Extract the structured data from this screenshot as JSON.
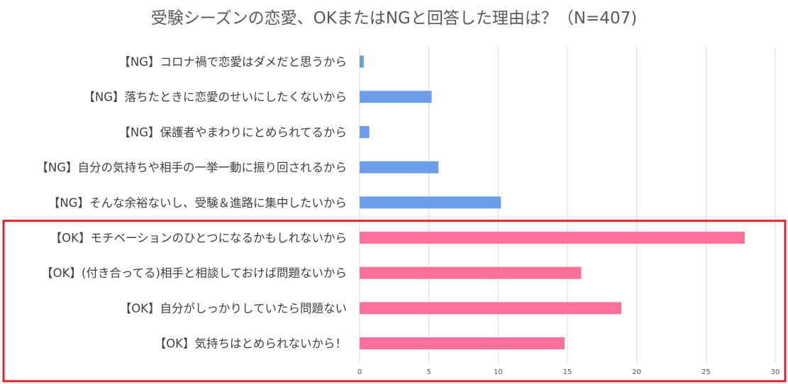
{
  "chart_data": {
    "type": "bar",
    "orientation": "horizontal",
    "title": "受験シーズンの恋愛、OKまたはNGと回答した理由は？（N=407)",
    "categories": [
      "【NG】コロナ禍で恋愛はダメだと思うから",
      "【NG】落ちたときに恋愛のせいにしたくないから",
      "【NG】保護者やまわりにとめられてるから",
      "【NG】自分の気持ちや相手の一挙一動に振り回されるから",
      "【NG】そんな余裕ないし、受験＆進路に集中したいから",
      "【OK】モチベーションのひとつになるかもしれないから",
      "【OK】(付き合ってる)相手と相談しておけば問題ないから",
      "【OK】自分がしっかりしていたら問題ない",
      "【OK】気持ちはとめられないから！"
    ],
    "values": [
      0.3,
      5.2,
      0.7,
      5.7,
      10.2,
      27.8,
      16.0,
      18.9,
      14.8
    ],
    "group": [
      "NG",
      "NG",
      "NG",
      "NG",
      "NG",
      "OK",
      "OK",
      "OK",
      "OK"
    ],
    "colors": {
      "NG": "#6d9eeb",
      "NG_first": "#6fa0c8",
      "OK": "#ff6f9c",
      "highlight_box": "#e3242b",
      "grid": "#d9d9d9"
    },
    "xlim": [
      0,
      30
    ],
    "xticks": [
      0,
      5,
      10,
      15,
      20,
      25,
      30
    ],
    "xlabel": "",
    "ylabel": "",
    "grid": true,
    "legend": "none",
    "highlight": "OK"
  }
}
